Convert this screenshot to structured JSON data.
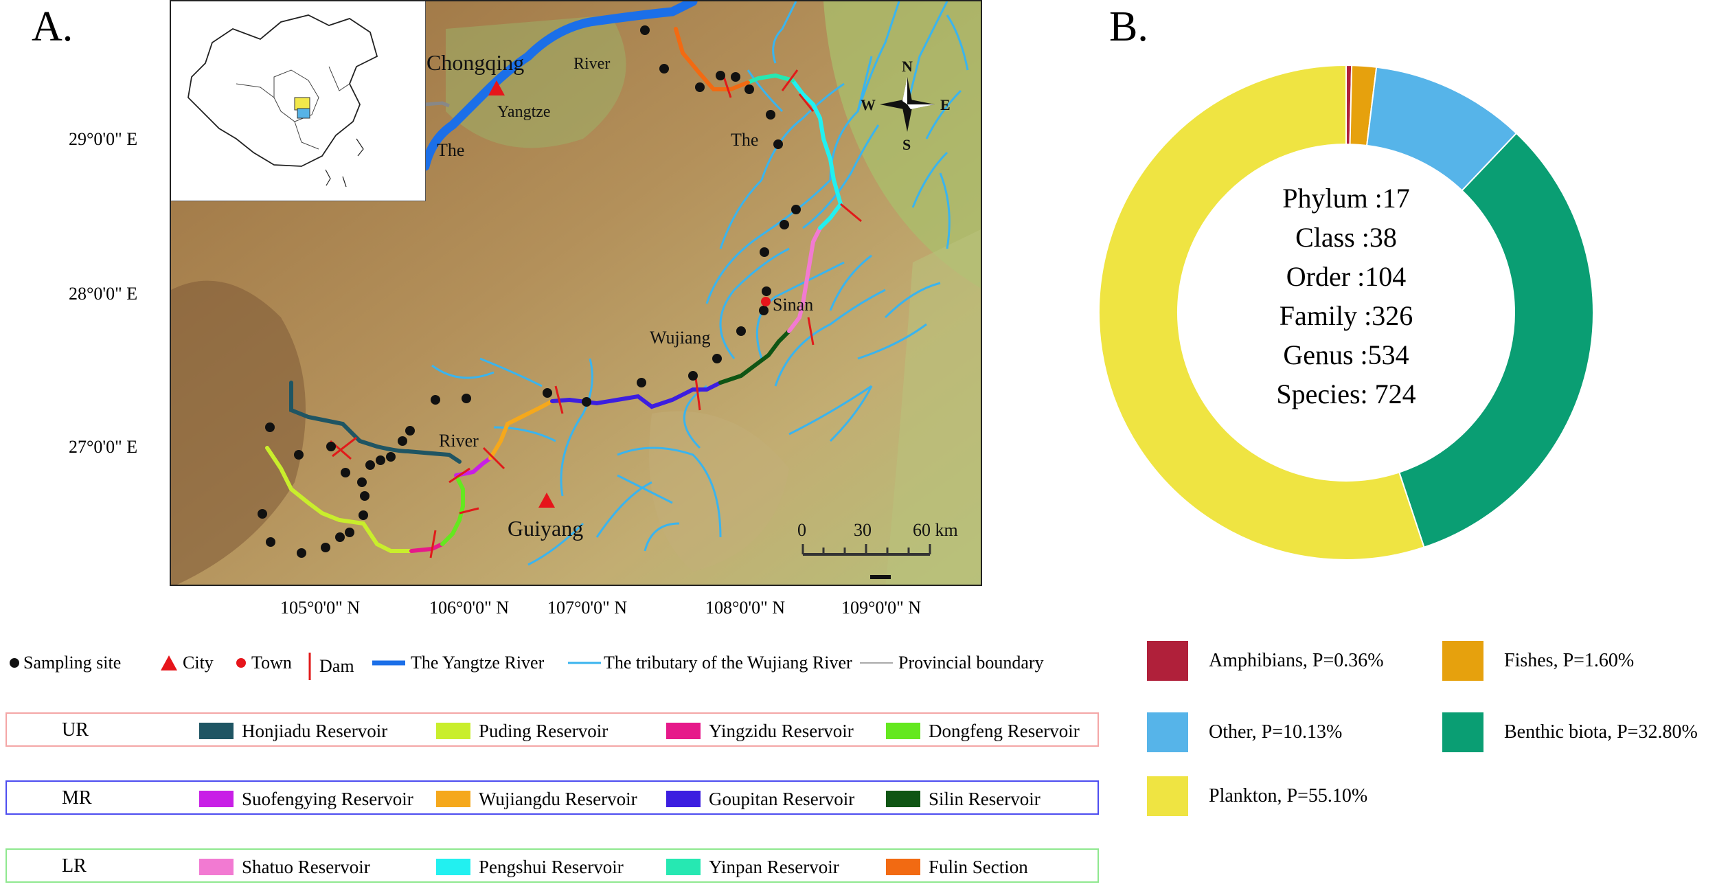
{
  "panels": {
    "a_label": "A.",
    "b_label": "B."
  },
  "map": {
    "lat_labels": [
      "29°0'0\" E",
      "28°0'0\" E",
      "27°0'0\" E"
    ],
    "lon_labels": [
      "105°0'0\" N",
      "106°0'0\" N",
      "107°0'0\" N",
      "108°0'0\" N",
      "109°0'0\" N"
    ],
    "place_labels": {
      "chongqing": "Chongqing",
      "yangtze": "Yangtze",
      "the_left": "The",
      "river_top": "River",
      "the_right": "The",
      "sinan": "Sinan",
      "wujiang": "Wujiang",
      "river_mid": "River",
      "guiyang": "Guiyang"
    },
    "compass": {
      "n": "N",
      "s": "S",
      "e": "E",
      "w": "W"
    },
    "scale_bar": {
      "t0": "0",
      "t1": "30",
      "t2": "60 km"
    }
  },
  "symbol_legend": {
    "sampling_site": "Sampling site",
    "city": "City",
    "town": "Town",
    "dam": "Dam",
    "yangtze_river": "The Yangtze River",
    "tributary": "The tributary of the Wujiang River",
    "boundary": "Provincial boundary"
  },
  "reservoir_groups": [
    {
      "tag": "UR",
      "border": "#f4a6a6",
      "items": [
        {
          "label": "Honjiadu Reservoir",
          "color": "#1f5563"
        },
        {
          "label": "Puding Reservoir",
          "color": "#c9ee2c"
        },
        {
          "label": "Yingzidu Reservoir",
          "color": "#e6198a"
        },
        {
          "label": "Dongfeng Reservoir",
          "color": "#64e81f"
        }
      ]
    },
    {
      "tag": "MR",
      "border": "#4d4df0",
      "items": [
        {
          "label": "Suofengying Reservoir",
          "color": "#c81fe6"
        },
        {
          "label": "Wujiangdu Reservoir",
          "color": "#f5a81c"
        },
        {
          "label": "Goupitan Reservoir",
          "color": "#3c1ee0"
        },
        {
          "label": "Silin Reservoir",
          "color": "#0f5514"
        }
      ]
    },
    {
      "tag": "LR",
      "border": "#8fe88f",
      "items": [
        {
          "label": "Shatuo Reservoir",
          "color": "#f27ad2"
        },
        {
          "label": "Pengshui Reservoir",
          "color": "#22f0f0"
        },
        {
          "label": "Yinpan Reservoir",
          "color": "#26e8b2"
        },
        {
          "label": "Fulin Section",
          "color": "#f26a12"
        }
      ]
    }
  ],
  "taxonomy": [
    {
      "text": "Phylum :17"
    },
    {
      "text": "Class :38"
    },
    {
      "text": "Order :104"
    },
    {
      "text": "Family :326"
    },
    {
      "text": "Genus :534"
    },
    {
      "text": "Species: 724"
    }
  ],
  "chart_data": {
    "type": "pie",
    "donut": true,
    "series": [
      {
        "name": "Amphibians",
        "value": 0.36,
        "color": "#b0203a"
      },
      {
        "name": "Fishes",
        "value": 1.6,
        "color": "#e6a10d"
      },
      {
        "name": "Other",
        "value": 10.13,
        "color": "#56b4e9"
      },
      {
        "name": "Benthic biota",
        "value": 32.8,
        "color": "#0a9e73"
      },
      {
        "name": "Plankton",
        "value": 55.1,
        "color": "#efe442"
      }
    ],
    "legend_labels": [
      "Amphibians, P=0.36%",
      "Fishes, P=1.60%",
      "Other, P=10.13%",
      "Benthic biota, P=32.80%",
      "Plankton, P=55.10%"
    ]
  }
}
